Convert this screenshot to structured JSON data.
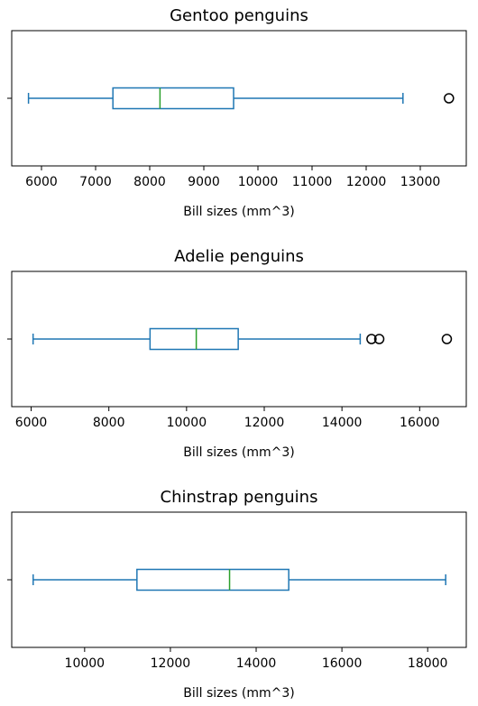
{
  "chart_data": [
    {
      "type": "box",
      "title": "Gentoo penguins",
      "xlabel": "Bill sizes (mm^3)",
      "ylabel": "",
      "xlim": [
        5450,
        13850
      ],
      "ticks": [
        6000,
        7000,
        8000,
        9000,
        10000,
        11000,
        12000,
        13000
      ],
      "tick_labels": [
        "6000",
        "7000",
        "8000",
        "9000",
        "10000",
        "11000",
        "12000",
        "13000"
      ],
      "box": {
        "whisker_low": 5760,
        "q1": 7320,
        "median": 8190,
        "q3": 9550,
        "whisker_high": 12680,
        "outliers": [
          13530
        ]
      }
    },
    {
      "type": "box",
      "title": "Adelie penguins",
      "xlabel": "Bill sizes (mm^3)",
      "ylabel": "",
      "xlim": [
        5500,
        17200
      ],
      "ticks": [
        6000,
        8000,
        10000,
        12000,
        14000,
        16000
      ],
      "tick_labels": [
        "6000",
        "8000",
        "10000",
        "12000",
        "14000",
        "16000"
      ],
      "box": {
        "whisker_low": 6050,
        "q1": 9060,
        "median": 10250,
        "q3": 11330,
        "whisker_high": 14470,
        "outliers": [
          14760,
          14960,
          16700
        ]
      }
    },
    {
      "type": "box",
      "title": "Chinstrap penguins",
      "xlabel": "Bill sizes (mm^3)",
      "ylabel": "",
      "xlim": [
        8300,
        18900
      ],
      "ticks": [
        10000,
        12000,
        14000,
        16000,
        18000
      ],
      "tick_labels": [
        "10000",
        "12000",
        "14000",
        "16000",
        "18000"
      ],
      "box": {
        "whisker_low": 8800,
        "q1": 11220,
        "median": 13380,
        "q3": 14760,
        "whisker_high": 18420,
        "outliers": []
      }
    }
  ],
  "colors": {
    "box": "#1f77b4",
    "median": "#2ca02c",
    "outlier": "#000000",
    "axes": "#000000"
  }
}
